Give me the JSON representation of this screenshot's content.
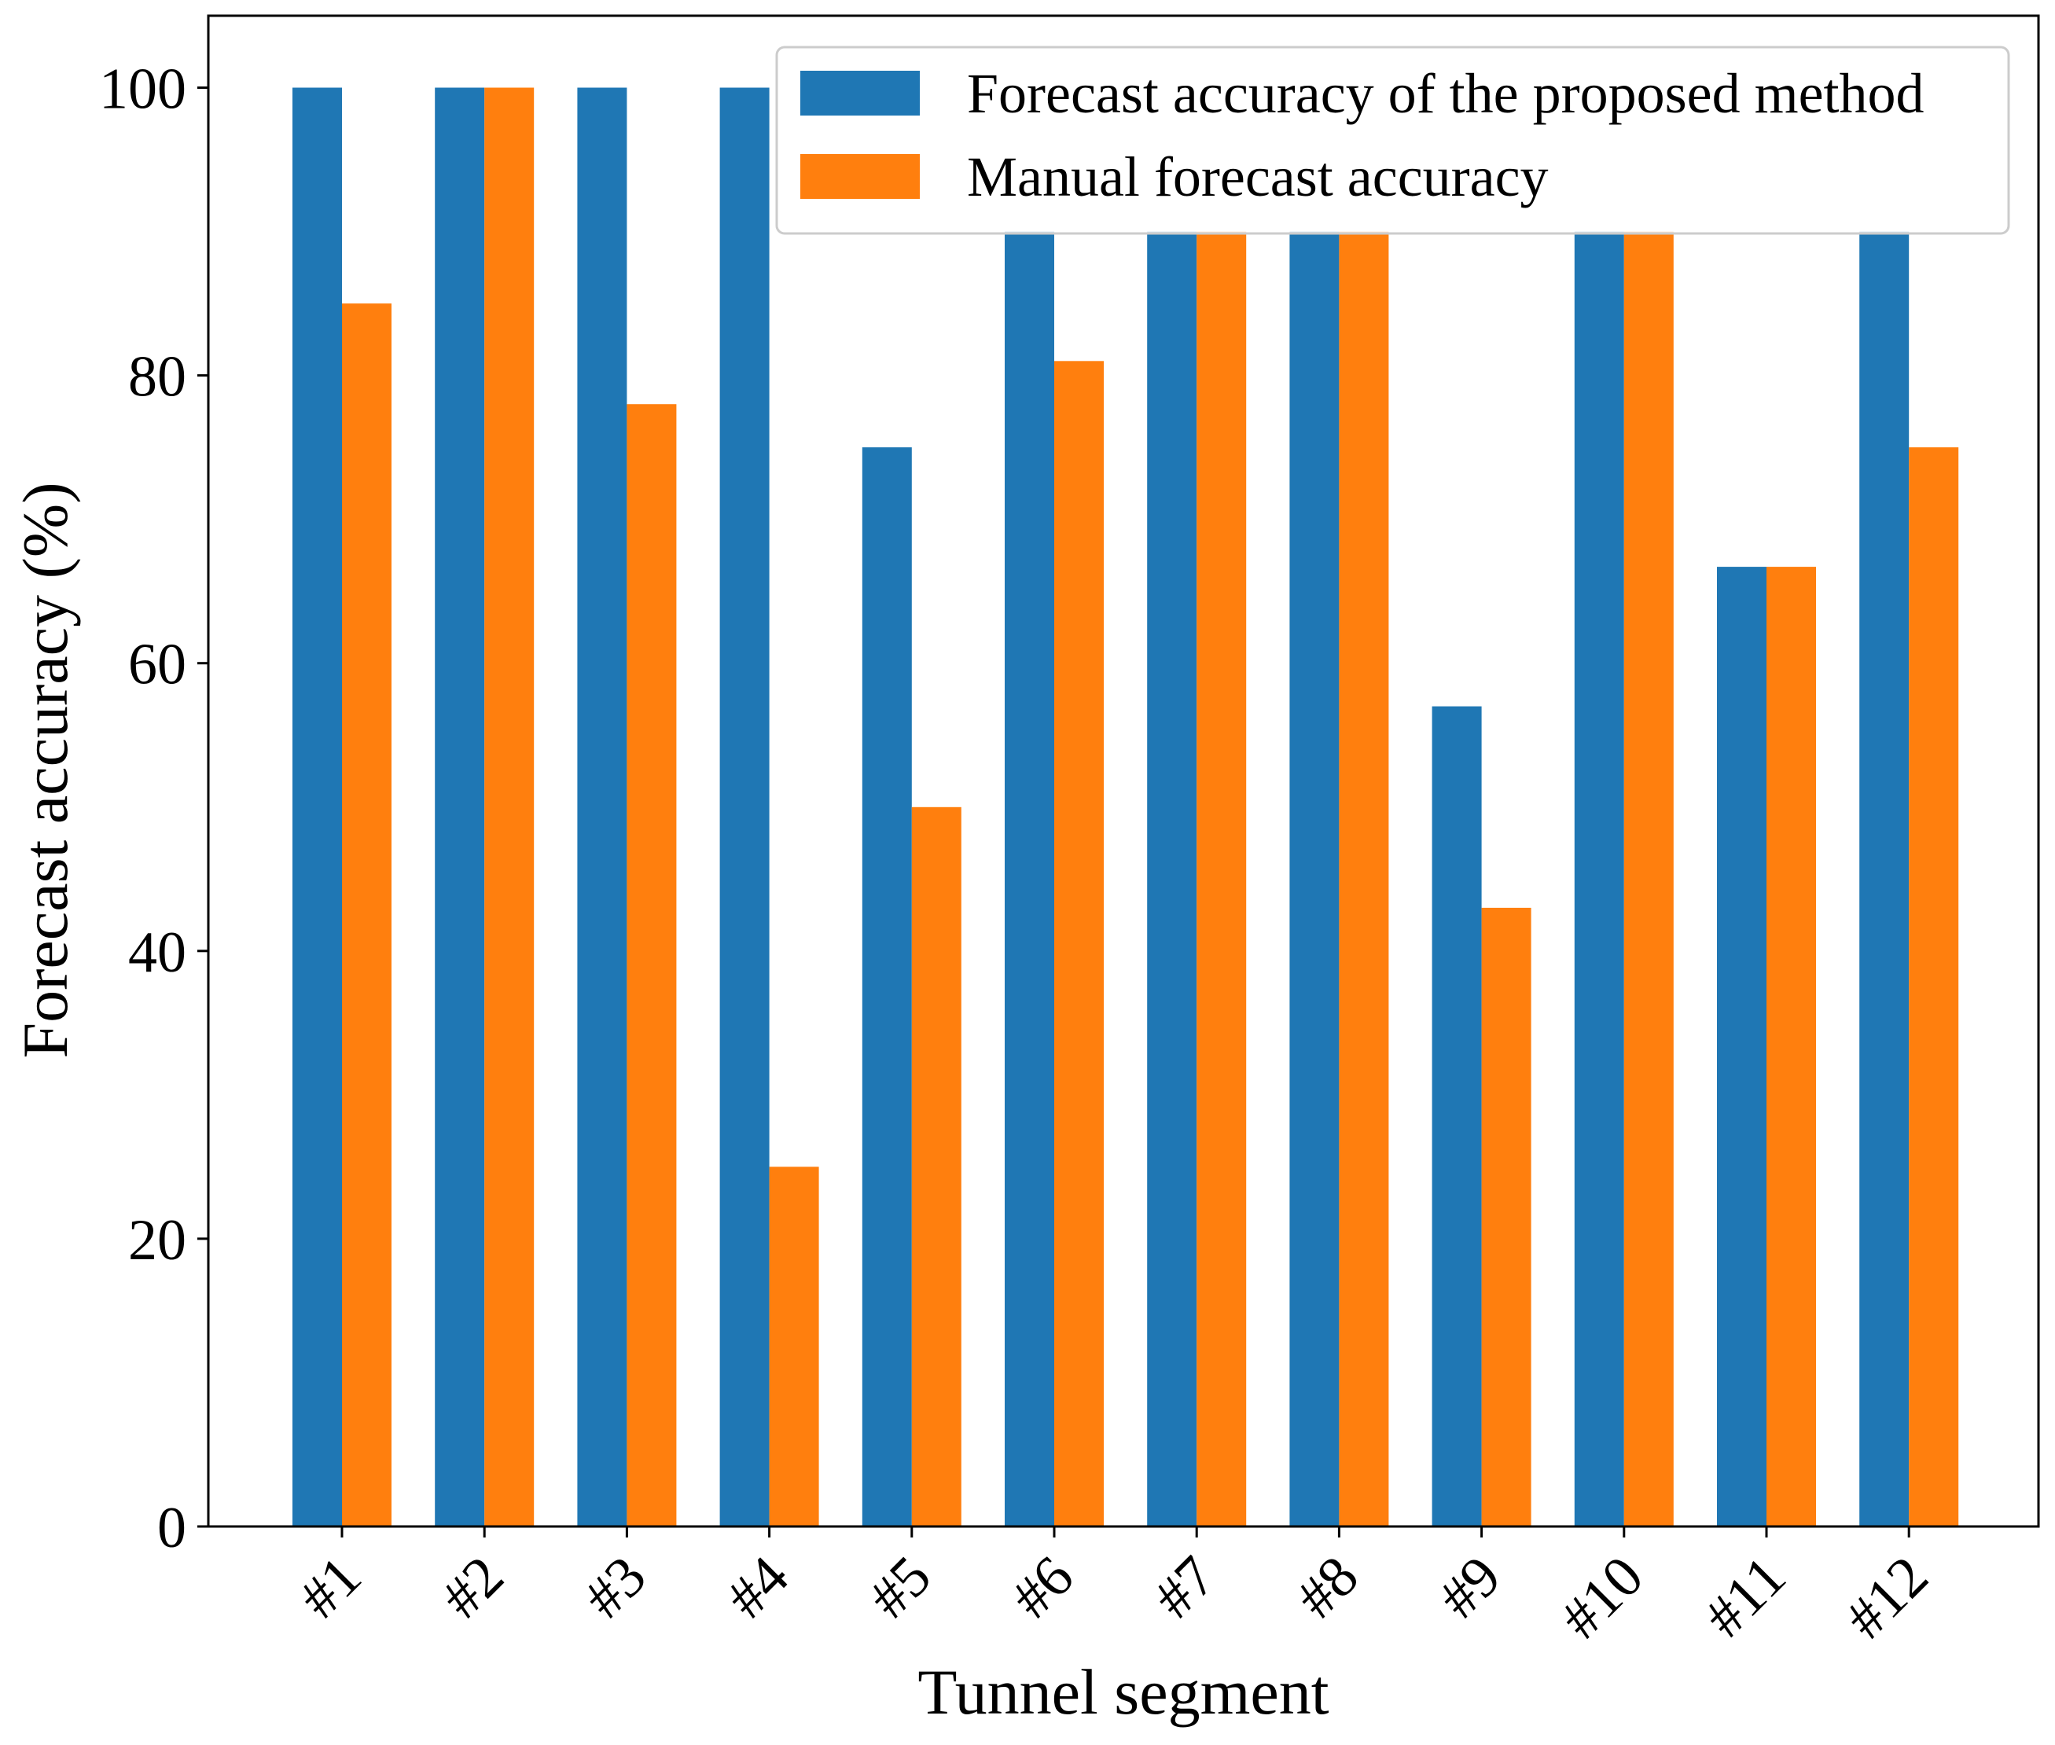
{
  "chart_data": {
    "type": "bar",
    "title": "",
    "xlabel": "Tunnel segment",
    "ylabel": "Forecast accuracy (%)",
    "ylim": [
      0,
      105
    ],
    "yticks": [
      0,
      20,
      40,
      60,
      80,
      100
    ],
    "ytick_labels": [
      "0",
      "20",
      "40",
      "60",
      "80",
      "100"
    ],
    "grid": false,
    "legend_position": "top-right",
    "categories": [
      "#1",
      "#2",
      "#3",
      "#4",
      "#5",
      "#6",
      "#7",
      "#8",
      "#9",
      "#10",
      "#11",
      "#12"
    ],
    "series": [
      {
        "name": "Forecast accuracy of the proposed method",
        "color": "#1f77b4",
        "values": [
          100,
          100,
          100,
          100,
          75,
          90,
          90,
          90,
          57,
          90,
          66.7,
          90
        ]
      },
      {
        "name": "Manual forecast accuracy",
        "color": "#ff7f0e",
        "values": [
          85,
          100,
          78,
          25,
          50,
          81,
          90,
          90,
          43,
          90,
          66.7,
          75
        ]
      }
    ]
  }
}
